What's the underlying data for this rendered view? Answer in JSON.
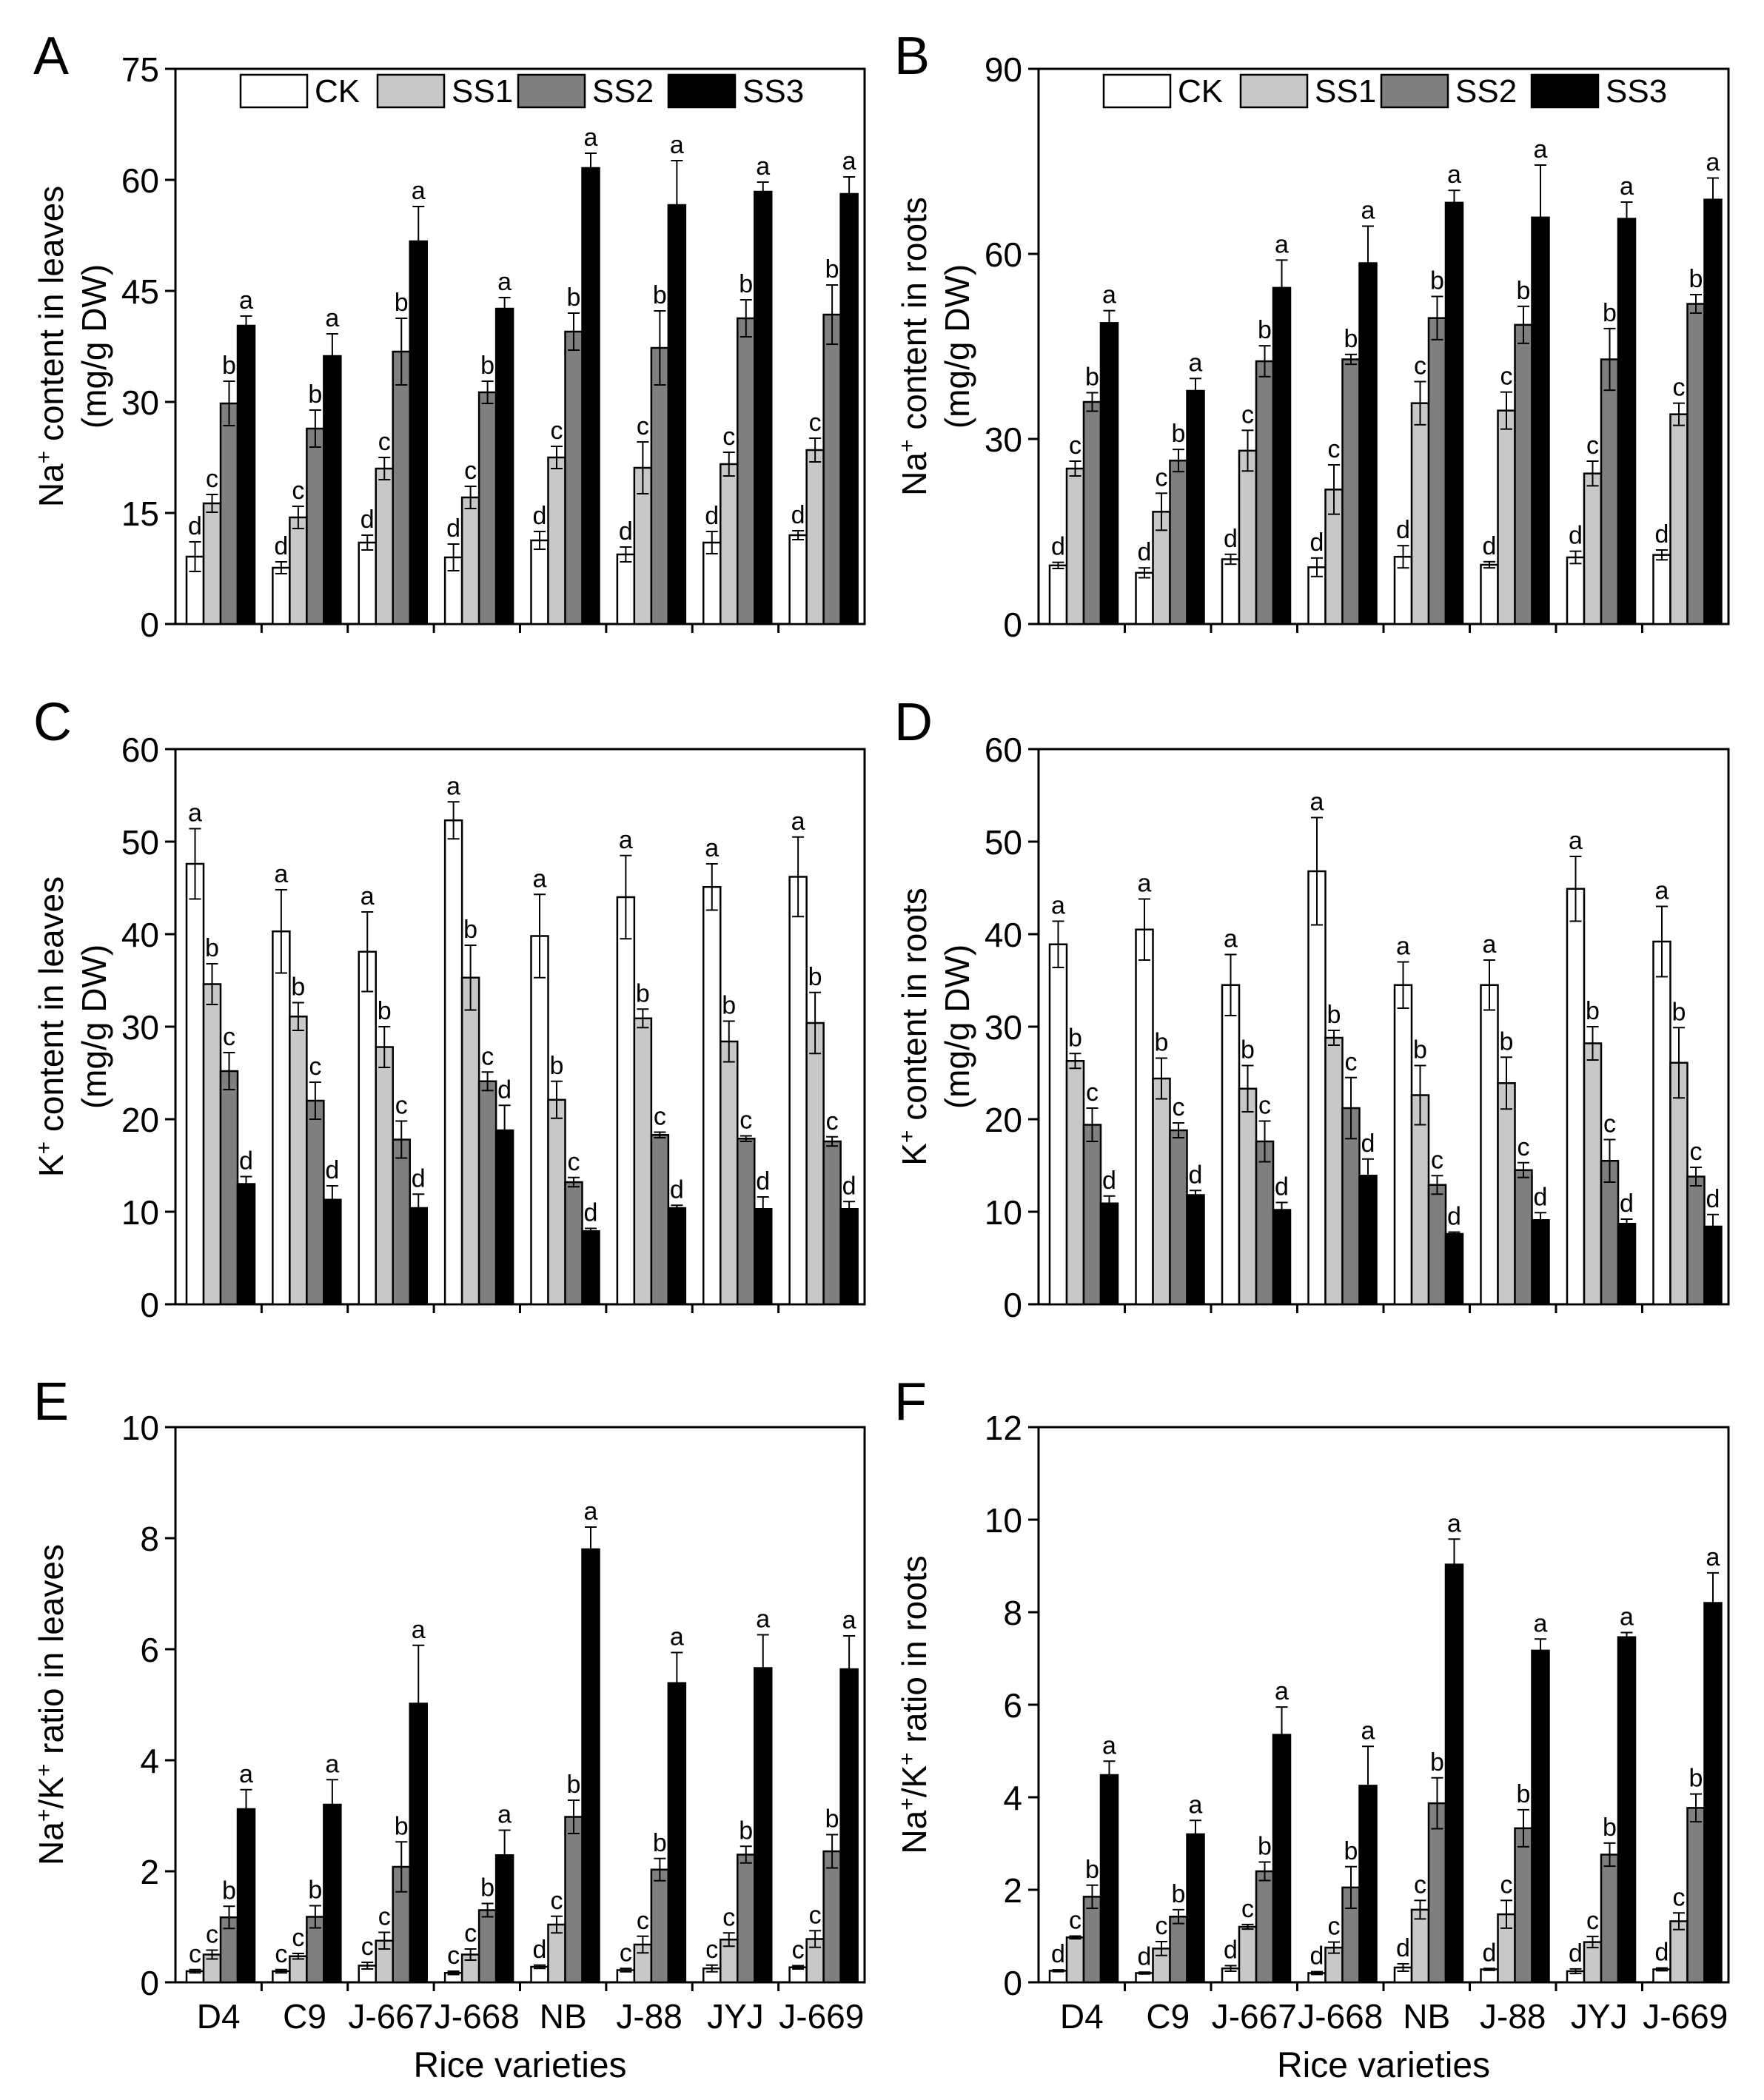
{
  "colors": {
    "CK": "#ffffff",
    "SS1": "#c8c8c8",
    "SS2": "#7f7f7f",
    "SS3": "#000000",
    "edge": "#000000"
  },
  "xlabel": "Rice varieties",
  "chart_data": [
    {
      "type": "bar",
      "panel": "A",
      "ylabel_pre": "Na",
      "ylabel_sup": "+",
      "ylabel_post": " content in leaves",
      "ylabel_line2": "(mg/g DW)",
      "ylim": [
        0,
        75
      ],
      "yticks": [
        0,
        15,
        30,
        45,
        60,
        75
      ],
      "categories": [
        "D4",
        "C9",
        "J-667",
        "J-668",
        "NB",
        "J-88",
        "JYJ",
        "J-669"
      ],
      "legend": true,
      "series": [
        {
          "name": "CK",
          "values": [
            9.1,
            7.6,
            11.0,
            9.0,
            11.3,
            9.4,
            11.0,
            12.0
          ],
          "errors": [
            2.0,
            0.8,
            1.0,
            1.8,
            1.2,
            1.0,
            1.5,
            0.6
          ],
          "labels": [
            "d",
            "d",
            "d",
            "d",
            "d",
            "d",
            "d",
            "d"
          ]
        },
        {
          "name": "SS1",
          "values": [
            16.3,
            14.4,
            21.0,
            17.1,
            22.5,
            21.1,
            21.6,
            23.5
          ],
          "errors": [
            1.2,
            1.5,
            1.5,
            1.5,
            1.5,
            3.5,
            1.6,
            1.6
          ],
          "labels": [
            "c",
            "c",
            "c",
            "c",
            "c",
            "c",
            "c",
            "c"
          ]
        },
        {
          "name": "SS2",
          "values": [
            29.8,
            26.4,
            36.8,
            31.3,
            39.5,
            37.3,
            41.3,
            41.8
          ],
          "errors": [
            3.0,
            2.5,
            4.5,
            1.5,
            2.5,
            5.0,
            2.5,
            4.0
          ],
          "labels": [
            "b",
            "b",
            "b",
            "b",
            "b",
            "b",
            "b",
            "b"
          ]
        },
        {
          "name": "SS3",
          "values": [
            40.3,
            36.2,
            51.7,
            42.6,
            61.6,
            56.6,
            58.4,
            58.1
          ],
          "errors": [
            1.3,
            3.0,
            4.7,
            1.5,
            2.0,
            6.0,
            1.3,
            2.3
          ],
          "labels": [
            "a",
            "a",
            "a",
            "a",
            "a",
            "a",
            "a",
            "a"
          ]
        }
      ]
    },
    {
      "type": "bar",
      "panel": "B",
      "ylabel_pre": "Na",
      "ylabel_sup": "+",
      "ylabel_post": " content in roots",
      "ylabel_line2": "(mg/g DW)",
      "ylim": [
        0,
        90
      ],
      "yticks": [
        0,
        30,
        60,
        90
      ],
      "categories": [
        "D4",
        "C9",
        "J-667",
        "J-668",
        "NB",
        "J-88",
        "JYJ",
        "J-669"
      ],
      "legend": true,
      "series": [
        {
          "name": "CK",
          "values": [
            9.5,
            8.3,
            10.5,
            9.2,
            10.9,
            9.6,
            10.8,
            11.2
          ],
          "errors": [
            0.5,
            0.8,
            0.8,
            1.5,
            1.8,
            0.5,
            1.0,
            0.8
          ],
          "labels": [
            "d",
            "d",
            "d",
            "d",
            "d",
            "d",
            "d",
            "d"
          ]
        },
        {
          "name": "SS1",
          "values": [
            25.2,
            18.2,
            28.1,
            21.8,
            35.8,
            34.6,
            24.4,
            34.0
          ],
          "errors": [
            1.2,
            3.0,
            3.3,
            4.0,
            3.5,
            3.0,
            2.0,
            1.8
          ],
          "labels": [
            "c",
            "c",
            "c",
            "c",
            "c",
            "c",
            "c",
            "c"
          ]
        },
        {
          "name": "SS2",
          "values": [
            36.0,
            26.5,
            42.6,
            42.9,
            49.6,
            48.5,
            42.9,
            51.9
          ],
          "errors": [
            1.5,
            1.8,
            2.5,
            0.8,
            3.5,
            3.0,
            5.0,
            1.5
          ],
          "labels": [
            "b",
            "b",
            "b",
            "b",
            "b",
            "b",
            "b",
            "b"
          ]
        },
        {
          "name": "SS3",
          "values": [
            48.8,
            37.8,
            54.5,
            58.5,
            68.3,
            65.9,
            65.7,
            68.8
          ],
          "errors": [
            2.0,
            2.0,
            4.5,
            6.0,
            2.0,
            8.5,
            2.7,
            3.5
          ],
          "labels": [
            "a",
            "a",
            "a",
            "a",
            "a",
            "a",
            "a",
            "a"
          ]
        }
      ]
    },
    {
      "type": "bar",
      "panel": "C",
      "ylabel_pre": "K",
      "ylabel_sup": "+",
      "ylabel_post": " content in leaves",
      "ylabel_line2": "(mg/g DW)",
      "ylim": [
        0,
        60
      ],
      "yticks": [
        0,
        10,
        20,
        30,
        40,
        50,
        60
      ],
      "categories": [
        "D4",
        "C9",
        "J-667",
        "J-668",
        "NB",
        "J-88",
        "JYJ",
        "J-669"
      ],
      "legend": false,
      "series": [
        {
          "name": "CK",
          "values": [
            47.6,
            40.3,
            38.1,
            52.3,
            39.8,
            44.0,
            45.1,
            46.2
          ],
          "errors": [
            3.8,
            4.5,
            4.3,
            2.0,
            4.5,
            4.5,
            2.5,
            4.3
          ],
          "labels": [
            "a",
            "a",
            "a",
            "a",
            "a",
            "a",
            "a",
            "a"
          ]
        },
        {
          "name": "SS1",
          "values": [
            34.6,
            31.1,
            27.8,
            35.3,
            22.1,
            30.9,
            28.4,
            30.4
          ],
          "errors": [
            2.2,
            1.5,
            2.2,
            3.5,
            2.0,
            1.0,
            2.2,
            3.3
          ],
          "labels": [
            "b",
            "b",
            "b",
            "b",
            "b",
            "b",
            "b",
            "b"
          ]
        },
        {
          "name": "SS2",
          "values": [
            25.2,
            22.0,
            17.8,
            24.1,
            13.2,
            18.3,
            17.9,
            17.6
          ],
          "errors": [
            2.0,
            2.0,
            2.0,
            1.0,
            0.5,
            0.3,
            0.3,
            0.5
          ],
          "labels": [
            "c",
            "c",
            "c",
            "c",
            "c",
            "c",
            "c",
            "c"
          ]
        },
        {
          "name": "SS3",
          "values": [
            13.0,
            11.3,
            10.4,
            18.8,
            7.9,
            10.4,
            10.3,
            10.3
          ],
          "errors": [
            0.8,
            1.5,
            1.5,
            2.7,
            0.3,
            0.3,
            1.3,
            0.8
          ],
          "labels": [
            "d",
            "d",
            "d",
            "d",
            "d",
            "d",
            "d",
            "d"
          ]
        }
      ]
    },
    {
      "type": "bar",
      "panel": "D",
      "ylabel_pre": "K",
      "ylabel_sup": "+",
      "ylabel_post": " content in roots",
      "ylabel_line2": "(mg/g DW)",
      "ylim": [
        0,
        60
      ],
      "yticks": [
        0,
        10,
        20,
        30,
        40,
        50,
        60
      ],
      "categories": [
        "D4",
        "C9",
        "J-667",
        "J-668",
        "NB",
        "J-88",
        "JYJ",
        "J-669"
      ],
      "legend": false,
      "series": [
        {
          "name": "CK",
          "values": [
            38.9,
            40.5,
            34.5,
            46.8,
            34.5,
            34.5,
            44.9,
            39.2
          ],
          "errors": [
            2.5,
            3.3,
            3.3,
            5.8,
            2.5,
            2.7,
            3.5,
            3.8
          ],
          "labels": [
            "a",
            "a",
            "a",
            "a",
            "a",
            "a",
            "a",
            "a"
          ]
        },
        {
          "name": "SS1",
          "values": [
            26.3,
            24.4,
            23.3,
            28.8,
            22.6,
            23.9,
            28.2,
            26.1
          ],
          "errors": [
            0.8,
            2.2,
            2.5,
            0.8,
            3.2,
            2.8,
            1.8,
            3.8
          ],
          "labels": [
            "b",
            "b",
            "b",
            "b",
            "b",
            "b",
            "b",
            "b"
          ]
        },
        {
          "name": "SS2",
          "values": [
            19.4,
            18.8,
            17.6,
            21.2,
            12.9,
            14.5,
            15.5,
            13.8
          ],
          "errors": [
            1.8,
            0.8,
            2.2,
            3.3,
            1.0,
            0.8,
            2.3,
            1.0
          ],
          "labels": [
            "c",
            "c",
            "c",
            "c",
            "c",
            "c",
            "c",
            "c"
          ]
        },
        {
          "name": "SS3",
          "values": [
            10.9,
            11.8,
            10.2,
            13.9,
            7.6,
            9.1,
            8.7,
            8.4
          ],
          "errors": [
            0.8,
            0.5,
            0.8,
            1.8,
            0.2,
            0.8,
            0.5,
            1.3
          ],
          "labels": [
            "d",
            "d",
            "d",
            "d",
            "d",
            "d",
            "d",
            "d"
          ]
        }
      ]
    },
    {
      "type": "bar",
      "panel": "E",
      "ylabel_pre": "Na",
      "ylabel_sup": "+",
      "ylabel_mid": "/K",
      "ylabel_sup2": "+",
      "ylabel_post": " ratio in leaves",
      "ylabel_line2": "",
      "ylim": [
        0,
        10
      ],
      "yticks": [
        0,
        2,
        4,
        6,
        8,
        10
      ],
      "categories": [
        "D4",
        "C9",
        "J-667",
        "J-668",
        "NB",
        "J-88",
        "JYJ",
        "J-669"
      ],
      "legend": false,
      "series": [
        {
          "name": "CK",
          "values": [
            0.2,
            0.2,
            0.3,
            0.17,
            0.28,
            0.22,
            0.25,
            0.27
          ],
          "errors": [
            0.03,
            0.03,
            0.06,
            0.03,
            0.03,
            0.03,
            0.06,
            0.03
          ],
          "labels": [
            "c",
            "c",
            "c",
            "c",
            "d",
            "c",
            "c",
            "c"
          ]
        },
        {
          "name": "SS1",
          "values": [
            0.5,
            0.47,
            0.75,
            0.5,
            1.04,
            0.68,
            0.77,
            0.78
          ],
          "errors": [
            0.08,
            0.05,
            0.15,
            0.1,
            0.15,
            0.15,
            0.12,
            0.15
          ],
          "labels": [
            "c",
            "c",
            "c",
            "c",
            "c",
            "c",
            "c",
            "c"
          ]
        },
        {
          "name": "SS2",
          "values": [
            1.17,
            1.18,
            2.08,
            1.3,
            2.98,
            2.03,
            2.3,
            2.36
          ],
          "errors": [
            0.2,
            0.2,
            0.45,
            0.12,
            0.3,
            0.2,
            0.15,
            0.3
          ],
          "labels": [
            "b",
            "b",
            "b",
            "b",
            "b",
            "b",
            "b",
            "b"
          ]
        },
        {
          "name": "SS3",
          "values": [
            3.12,
            3.2,
            5.02,
            2.29,
            7.8,
            5.39,
            5.66,
            5.64
          ],
          "errors": [
            0.35,
            0.45,
            1.05,
            0.45,
            0.4,
            0.55,
            0.6,
            0.6
          ],
          "labels": [
            "a",
            "a",
            "a",
            "a",
            "a",
            "a",
            "a",
            "a"
          ]
        }
      ]
    },
    {
      "type": "bar",
      "panel": "F",
      "ylabel_pre": "Na",
      "ylabel_sup": "+",
      "ylabel_mid": "/K",
      "ylabel_sup2": "+",
      "ylabel_post": " ratio in roots",
      "ylabel_line2": "",
      "ylim": [
        0,
        12
      ],
      "yticks": [
        0,
        2,
        4,
        6,
        8,
        10,
        12
      ],
      "categories": [
        "D4",
        "C9",
        "J-667",
        "J-668",
        "NB",
        "J-88",
        "JYJ",
        "J-669"
      ],
      "legend": false,
      "series": [
        {
          "name": "CK",
          "values": [
            0.25,
            0.2,
            0.3,
            0.2,
            0.32,
            0.28,
            0.24,
            0.28
          ],
          "errors": [
            0.02,
            0.02,
            0.06,
            0.03,
            0.08,
            0.02,
            0.05,
            0.03
          ],
          "labels": [
            "d",
            "d",
            "d",
            "d",
            "d",
            "d",
            "d",
            "d"
          ]
        },
        {
          "name": "SS1",
          "values": [
            0.97,
            0.73,
            1.2,
            0.75,
            1.57,
            1.47,
            0.87,
            1.32
          ],
          "errors": [
            0.03,
            0.15,
            0.05,
            0.12,
            0.2,
            0.3,
            0.12,
            0.18
          ],
          "labels": [
            "c",
            "c",
            "c",
            "c",
            "c",
            "c",
            "c",
            "c"
          ]
        },
        {
          "name": "SS2",
          "values": [
            1.85,
            1.42,
            2.4,
            2.05,
            3.87,
            3.33,
            2.76,
            3.77
          ],
          "errors": [
            0.25,
            0.15,
            0.2,
            0.45,
            0.55,
            0.4,
            0.25,
            0.3
          ],
          "labels": [
            "b",
            "b",
            "b",
            "b",
            "b",
            "b",
            "b",
            "b"
          ]
        },
        {
          "name": "SS3",
          "values": [
            4.48,
            3.2,
            5.35,
            4.25,
            9.03,
            7.17,
            7.46,
            8.2
          ],
          "errors": [
            0.3,
            0.3,
            0.6,
            0.85,
            0.55,
            0.25,
            0.1,
            0.65
          ],
          "labels": [
            "a",
            "a",
            "a",
            "a",
            "a",
            "a",
            "a",
            "a"
          ]
        }
      ]
    }
  ]
}
